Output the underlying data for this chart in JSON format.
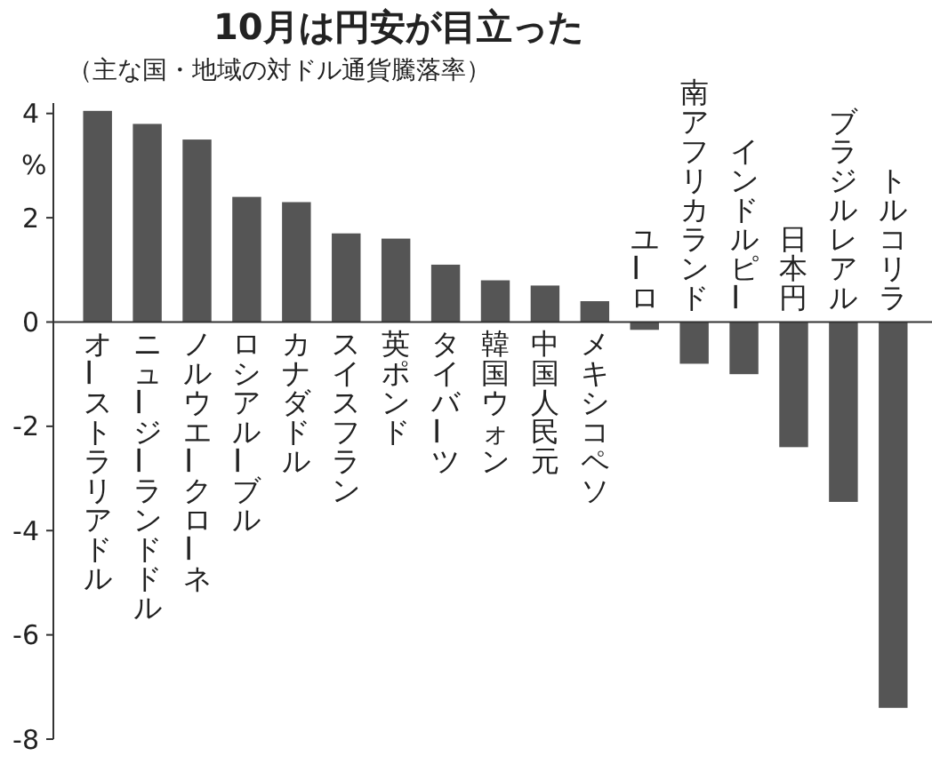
{
  "chart_data": {
    "type": "bar",
    "title": "10月は円安が目立った",
    "subtitle": "（主な国・地域の対ドル通貨騰落率）",
    "ylabel": "%",
    "categories": [
      "オーストラリアドル",
      "ニュージーランドドル",
      "ノルウエークローネ",
      "ロシアルーブル",
      "カナダドル",
      "スイスフラン",
      "英ポンド",
      "タイバーツ",
      "韓国ウォン",
      "中国人民元",
      "メキシコペソ",
      "ユーロ",
      "南アフリカランド",
      "インドルピー",
      "日本円",
      "ブラジルレアル",
      "トルコリラ"
    ],
    "values": [
      4.05,
      3.8,
      3.5,
      2.4,
      2.3,
      1.7,
      1.6,
      1.1,
      0.8,
      0.7,
      0.4,
      -0.15,
      -0.8,
      -1.0,
      -2.4,
      -3.45,
      -7.4
    ],
    "color": "#555555",
    "ylim": [
      -8,
      4.2
    ],
    "yticks": [
      -8,
      -6,
      -4,
      -2,
      0,
      2,
      4
    ],
    "grid": false
  }
}
